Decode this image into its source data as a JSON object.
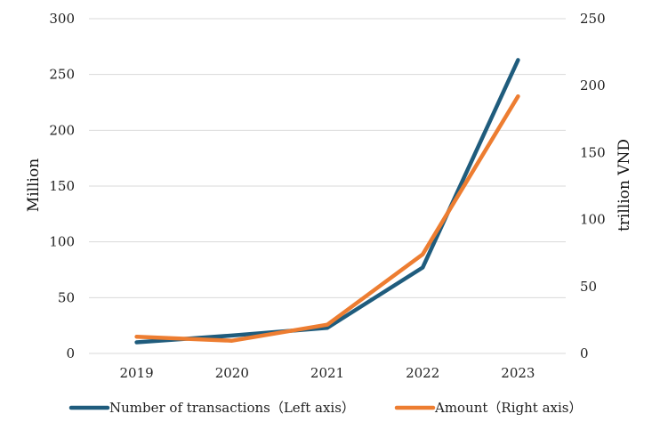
{
  "chart_data": {
    "type": "line",
    "x": [
      "2019",
      "2020",
      "2021",
      "2022",
      "2023"
    ],
    "series": [
      {
        "name": "Number of transactions（Left axis）",
        "axis": "left",
        "values": [
          10,
          16,
          23,
          77,
          263
        ],
        "color": "#1f5c7d"
      },
      {
        "name": "Amount（Right axis）",
        "axis": "right",
        "values": [
          12.5,
          9.5,
          21.5,
          74,
          192
        ],
        "color": "#ed7d31"
      }
    ],
    "ylabel_left": "Million",
    "ylabel_right": "trillion VND",
    "ylim_left": [
      0,
      300
    ],
    "ylim_right": [
      0,
      250
    ],
    "yticks_left": [
      "0",
      "50",
      "100",
      "150",
      "200",
      "250",
      "300"
    ],
    "yticks_right": [
      "0",
      "50",
      "100",
      "150",
      "200",
      "250"
    ],
    "grid": true,
    "gridline_color": "#d9d9d9",
    "legend_position": "bottom"
  }
}
